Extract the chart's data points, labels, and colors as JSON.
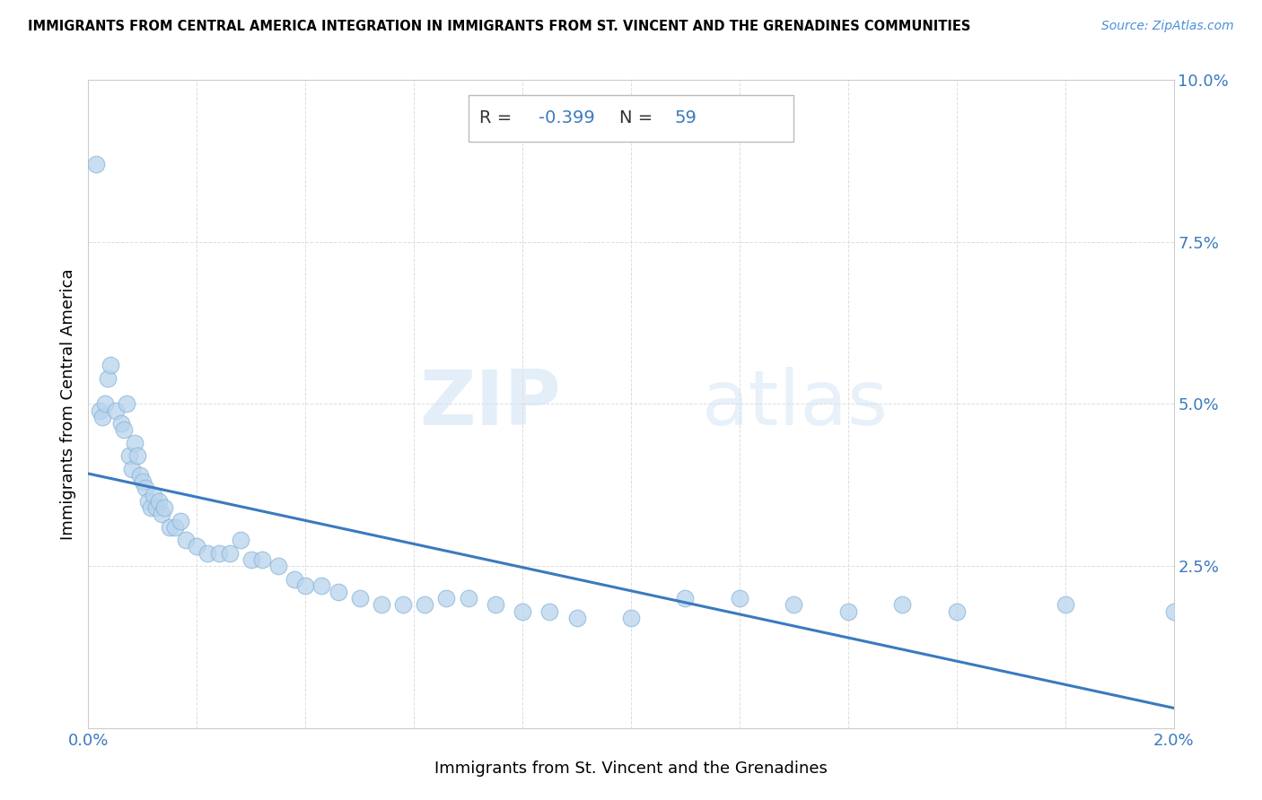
{
  "title": "IMMIGRANTS FROM CENTRAL AMERICA INTEGRATION IN IMMIGRANTS FROM ST. VINCENT AND THE GRENADINES COMMUNITIES",
  "source": "Source: ZipAtlas.com",
  "xlabel": "Immigrants from St. Vincent and the Grenadines",
  "ylabel": "Immigrants from Central America",
  "R": -0.399,
  "N": 59,
  "xlim": [
    0.0,
    0.02
  ],
  "ylim": [
    0.0,
    0.1
  ],
  "xticks": [
    0.0,
    0.002,
    0.004,
    0.006,
    0.008,
    0.01,
    0.012,
    0.014,
    0.016,
    0.018,
    0.02
  ],
  "yticks": [
    0.0,
    0.025,
    0.05,
    0.075,
    0.1
  ],
  "ytick_labels": [
    "",
    "2.5%",
    "5.0%",
    "7.5%",
    "10.0%"
  ],
  "xtick_labels": [
    "0.0%",
    "",
    "",
    "",
    "",
    "",
    "",
    "",
    "",
    "",
    "2.0%"
  ],
  "scatter_color": "#b8d4ec",
  "scatter_edge_color": "#88b4d8",
  "line_color": "#3a7abf",
  "title_color": "#000000",
  "axis_label_color": "#000000",
  "tick_label_color": "#3a7abf",
  "dot_size": 180,
  "scatter_alpha": 0.75,
  "x_data": [
    0.00015,
    0.0002,
    0.00025,
    0.0003,
    0.00035,
    0.0004,
    0.0005,
    0.0006,
    0.00065,
    0.0007,
    0.00075,
    0.0008,
    0.00085,
    0.0009,
    0.00095,
    0.001,
    0.00105,
    0.0011,
    0.00115,
    0.0012,
    0.00125,
    0.0013,
    0.00135,
    0.0014,
    0.0015,
    0.0016,
    0.0017,
    0.0018,
    0.002,
    0.0022,
    0.0024,
    0.0026,
    0.0028,
    0.003,
    0.0032,
    0.0035,
    0.0038,
    0.004,
    0.0043,
    0.0046,
    0.005,
    0.0054,
    0.0058,
    0.0062,
    0.0066,
    0.007,
    0.0075,
    0.008,
    0.0085,
    0.009,
    0.01,
    0.011,
    0.012,
    0.013,
    0.014,
    0.015,
    0.016,
    0.018,
    0.02
  ],
  "y_data": [
    0.087,
    0.049,
    0.048,
    0.05,
    0.054,
    0.056,
    0.049,
    0.047,
    0.046,
    0.05,
    0.042,
    0.04,
    0.044,
    0.042,
    0.039,
    0.038,
    0.037,
    0.035,
    0.034,
    0.036,
    0.034,
    0.035,
    0.033,
    0.034,
    0.031,
    0.031,
    0.032,
    0.029,
    0.028,
    0.027,
    0.027,
    0.027,
    0.029,
    0.026,
    0.026,
    0.025,
    0.023,
    0.022,
    0.022,
    0.021,
    0.02,
    0.019,
    0.019,
    0.019,
    0.02,
    0.02,
    0.019,
    0.018,
    0.018,
    0.017,
    0.017,
    0.02,
    0.02,
    0.019,
    0.018,
    0.019,
    0.018,
    0.019,
    0.018
  ],
  "watermark_zip": "ZIP",
  "watermark_atlas": "atlas",
  "grid_color": "#dddddd",
  "background_color": "#ffffff",
  "stat_box_edgecolor": "#bbbbbb"
}
